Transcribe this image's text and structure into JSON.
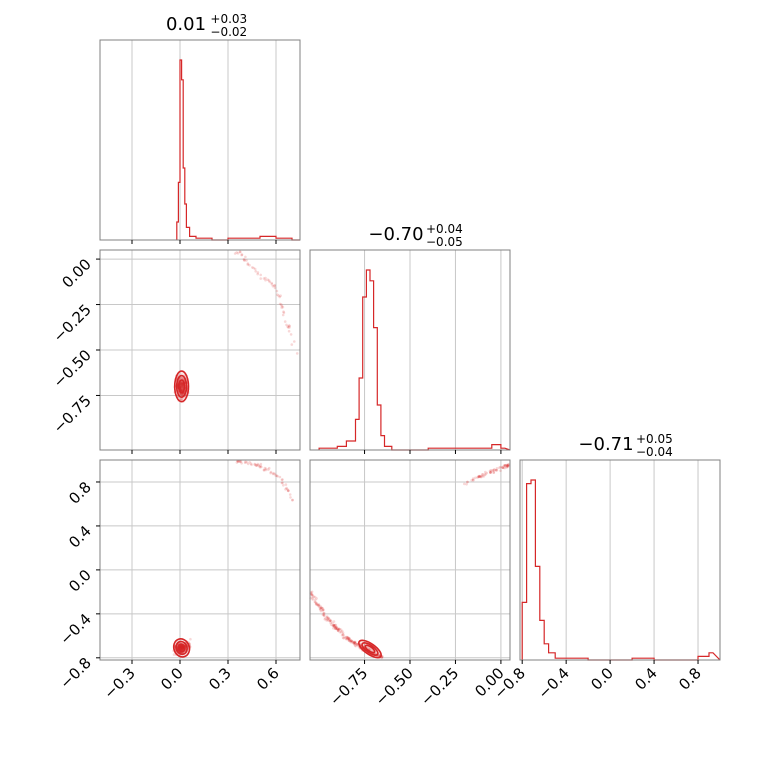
{
  "chart_data": {
    "type": "corner",
    "parameters": [
      {
        "id": "p1",
        "median": "0.01",
        "upper": "+0.03",
        "lower": "−0.02",
        "range": [
          -0.5,
          0.75
        ]
      },
      {
        "id": "p2",
        "median": "−0.70",
        "upper": "+0.04",
        "lower": "−0.05",
        "range": [
          -1.05,
          0.05
        ]
      },
      {
        "id": "p3",
        "median": "−0.71",
        "upper": "+0.05",
        "lower": "−0.04",
        "range": [
          -0.82,
          1.0
        ]
      }
    ],
    "tick_labels": {
      "p1_x": [
        {
          "v": -0.3,
          "t": "−0.3"
        },
        {
          "v": 0.0,
          "t": "0.0"
        },
        {
          "v": 0.3,
          "t": "0.3"
        },
        {
          "v": 0.6,
          "t": "0.6"
        }
      ],
      "p2_x": [
        {
          "v": -0.75,
          "t": "−0.75"
        },
        {
          "v": -0.5,
          "t": "−0.50"
        },
        {
          "v": -0.25,
          "t": "−0.25"
        },
        {
          "v": 0.0,
          "t": "0.00"
        }
      ],
      "p3_x": [
        {
          "v": -0.8,
          "t": "−0.8"
        },
        {
          "v": -0.4,
          "t": "−0.4"
        },
        {
          "v": 0.0,
          "t": "0.0"
        },
        {
          "v": 0.4,
          "t": "0.4"
        },
        {
          "v": 0.8,
          "t": "0.8"
        }
      ],
      "p2_y": [
        {
          "v": 0.0,
          "t": "0.00"
        },
        {
          "v": -0.25,
          "t": "−0.25"
        },
        {
          "v": -0.5,
          "t": "−0.50"
        },
        {
          "v": -0.75,
          "t": "−0.75"
        }
      ],
      "p3_y": [
        {
          "v": 0.8,
          "t": "0.8"
        },
        {
          "v": 0.4,
          "t": "0.4"
        },
        {
          "v": 0.0,
          "t": "0.0"
        },
        {
          "v": -0.4,
          "t": "−0.4"
        },
        {
          "v": -0.8,
          "t": "−0.8"
        }
      ]
    },
    "histograms": {
      "p1": {
        "x": [
          -0.02,
          -0.01,
          0.0,
          0.01,
          0.02,
          0.03,
          0.04,
          0.06,
          0.1,
          0.2,
          0.3,
          0.4,
          0.5,
          0.6,
          0.7
        ],
        "density": [
          0.1,
          0.32,
          1.0,
          0.89,
          0.4,
          0.2,
          0.07,
          0.02,
          0.01,
          0.0,
          0.01,
          0.01,
          0.02,
          0.01,
          0.0
        ]
      },
      "p2": {
        "x": [
          -1.0,
          -0.9,
          -0.85,
          -0.8,
          -0.78,
          -0.76,
          -0.74,
          -0.72,
          -0.7,
          -0.68,
          -0.66,
          -0.64,
          -0.6,
          -0.4,
          -0.2,
          -0.05,
          0.0
        ],
        "density": [
          0.01,
          0.02,
          0.05,
          0.17,
          0.4,
          0.85,
          1.0,
          0.94,
          0.68,
          0.25,
          0.08,
          0.02,
          0.0,
          0.01,
          0.01,
          0.03,
          0.01
        ]
      },
      "p3": {
        "x": [
          -0.8,
          -0.76,
          -0.72,
          -0.68,
          -0.64,
          -0.6,
          -0.56,
          -0.5,
          -0.4,
          -0.2,
          0.0,
          0.2,
          0.4,
          0.8,
          0.9
        ],
        "density": [
          0.32,
          0.98,
          1.0,
          0.52,
          0.22,
          0.09,
          0.04,
          0.01,
          0.01,
          0.0,
          0.0,
          0.01,
          0.0,
          0.02,
          0.04
        ]
      }
    },
    "grid": true,
    "color": "#d62728"
  }
}
